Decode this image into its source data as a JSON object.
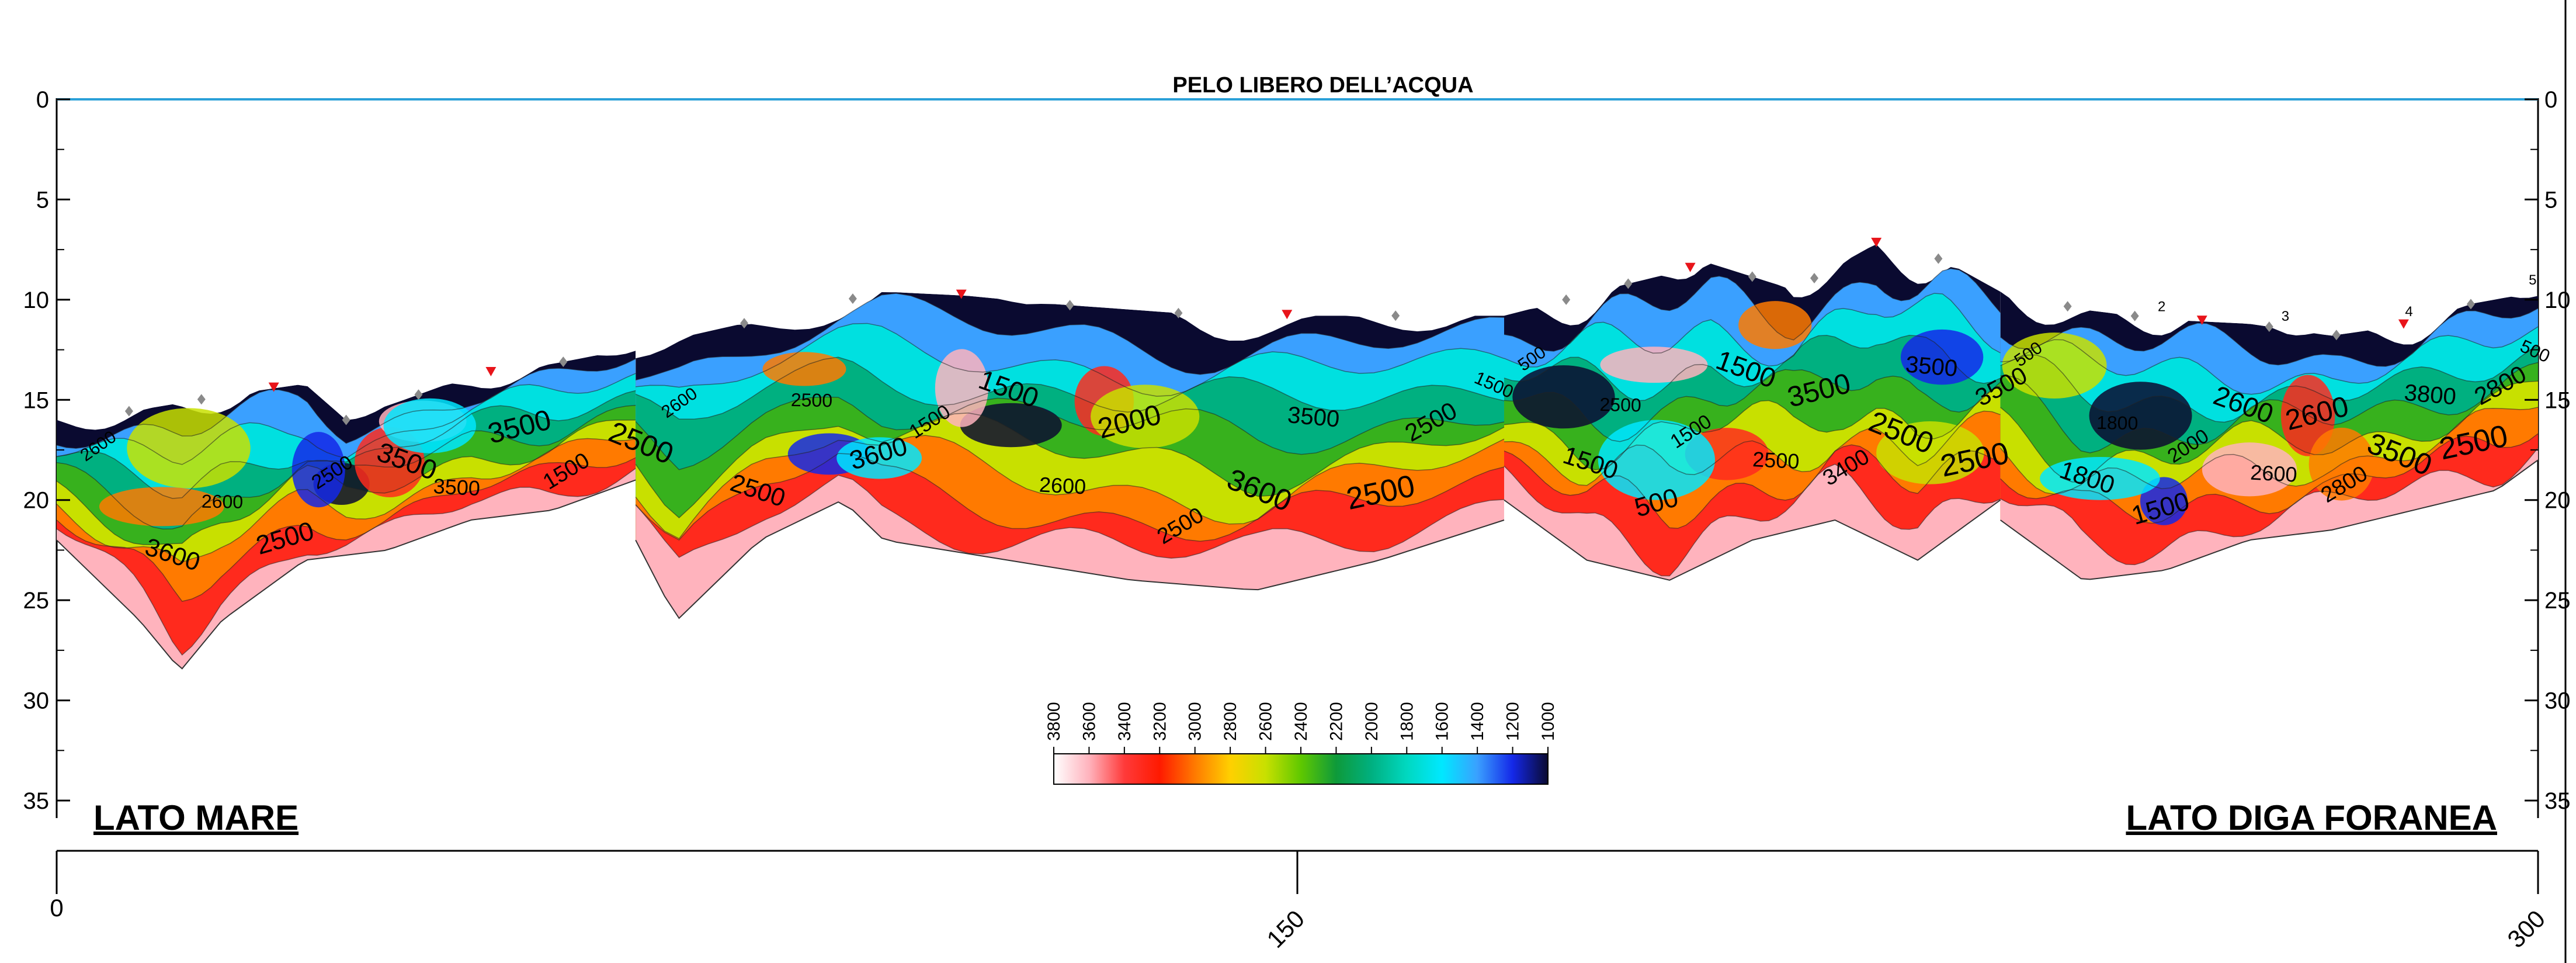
{
  "chart_data": {
    "type": "heatmap",
    "title": "PELO LIBERO DELL’ACQUA",
    "xlabel": "",
    "ylabel": "",
    "xlim": [
      0,
      300
    ],
    "ylim": [
      0,
      35
    ],
    "x_ticks": [
      "0",
      "150",
      "300"
    ],
    "y_ticks": [
      "0",
      "5",
      "10",
      "15",
      "20",
      "25",
      "30",
      "35"
    ],
    "left_label": "LATO MARE",
    "right_label": "LATO DIGA FORANEA",
    "colorbar": {
      "values": [
        3800,
        3600,
        3400,
        3200,
        3000,
        2800,
        2600,
        2400,
        2200,
        2000,
        1800,
        1600,
        1400,
        1200,
        1000
      ],
      "labels": [
        "3800",
        "3600",
        "3400",
        "3200",
        "3000",
        "2800",
        "2600",
        "2400",
        "2200",
        "2000",
        "1800",
        "1600",
        "1400",
        "1200",
        "1000"
      ],
      "colors": [
        "#ffffff",
        "#ffb3bd",
        "#ff3a3a",
        "#ff1a00",
        "#ff7a00",
        "#ffd000",
        "#c8e000",
        "#5fc800",
        "#0e9a3a",
        "#00b080",
        "#00d8c0",
        "#00e8ff",
        "#3aa0ff",
        "#1428e8",
        "#0a0a30"
      ]
    },
    "sections": [
      {
        "x_range": [
          0,
          70
        ],
        "surface": [
          [
            0,
            16
          ],
          [
            10,
            15.5
          ],
          [
            20,
            14.8
          ],
          [
            30,
            14.2
          ],
          [
            35,
            16
          ],
          [
            42,
            15
          ],
          [
            50,
            13.8
          ],
          [
            60,
            13.2
          ],
          [
            70,
            12.4
          ]
        ],
        "bottom_depth": [
          [
            0,
            22
          ],
          [
            10,
            26
          ],
          [
            15,
            28.5
          ],
          [
            20,
            26
          ],
          [
            30,
            23
          ],
          [
            40,
            22.5
          ],
          [
            50,
            21
          ],
          [
            60,
            20.5
          ],
          [
            70,
            19
          ]
        ],
        "contour_labels": [
          "2600",
          "3600",
          "2600",
          "2500",
          "2500",
          "3500",
          "3500",
          "3500",
          "1500",
          "2500"
        ]
      },
      {
        "x_range": [
          70,
          175
        ],
        "surface": [
          [
            70,
            12.4
          ],
          [
            85,
            11
          ],
          [
            100,
            9.6
          ],
          [
            110,
            9.8
          ],
          [
            120,
            10.2
          ],
          [
            140,
            10.8
          ],
          [
            160,
            10.8
          ],
          [
            175,
            10.8
          ]
        ],
        "bottom_depth": [
          [
            70,
            22
          ],
          [
            75,
            26
          ],
          [
            85,
            22
          ],
          [
            95,
            20
          ],
          [
            100,
            22
          ],
          [
            115,
            23
          ],
          [
            130,
            24
          ],
          [
            145,
            24.5
          ],
          [
            160,
            23
          ],
          [
            175,
            21
          ]
        ],
        "contour_labels": [
          "2600",
          "2500",
          "2500",
          "3600",
          "1500",
          "1500",
          "2600",
          "2000",
          "2500",
          "3600",
          "3500",
          "2500",
          "2500",
          "1500"
        ]
      },
      {
        "x_range": [
          175,
          235
        ],
        "surface": [
          [
            175,
            10.8
          ],
          [
            190,
            9.2
          ],
          [
            200,
            8.2
          ],
          [
            210,
            9.5
          ],
          [
            220,
            7.2
          ],
          [
            228,
            8
          ],
          [
            235,
            9.6
          ]
        ],
        "bottom_depth": [
          [
            175,
            20
          ],
          [
            185,
            23
          ],
          [
            195,
            24
          ],
          [
            205,
            22
          ],
          [
            215,
            21
          ],
          [
            225,
            23
          ],
          [
            235,
            20
          ]
        ],
        "contour_labels": [
          "500",
          "1500",
          "2500",
          "500",
          "1500",
          "1500",
          "2500",
          "3500",
          "3400",
          "2500",
          "3500",
          "2500",
          "3500"
        ]
      },
      {
        "x_range": [
          235,
          300
        ],
        "surface": [
          [
            235,
            9.6
          ],
          [
            245,
            10.5
          ],
          [
            255,
            11
          ],
          [
            265,
            11.2
          ],
          [
            275,
            11.8
          ],
          [
            285,
            11.2
          ],
          [
            292,
            10.2
          ],
          [
            300,
            9.6
          ]
        ],
        "bottom_depth": [
          [
            235,
            21
          ],
          [
            245,
            24
          ],
          [
            255,
            23.5
          ],
          [
            265,
            22
          ],
          [
            275,
            21.5
          ],
          [
            285,
            20.5
          ],
          [
            295,
            19.5
          ],
          [
            300,
            18
          ]
        ],
        "contour_labels": [
          "500",
          "1800",
          "1800",
          "1500",
          "2000",
          "2600",
          "2600",
          "2600",
          "2800",
          "3500",
          "3800",
          "2500",
          "2800",
          "500"
        ],
        "markers": [
          "2",
          "3",
          "4",
          "5"
        ]
      }
    ]
  }
}
